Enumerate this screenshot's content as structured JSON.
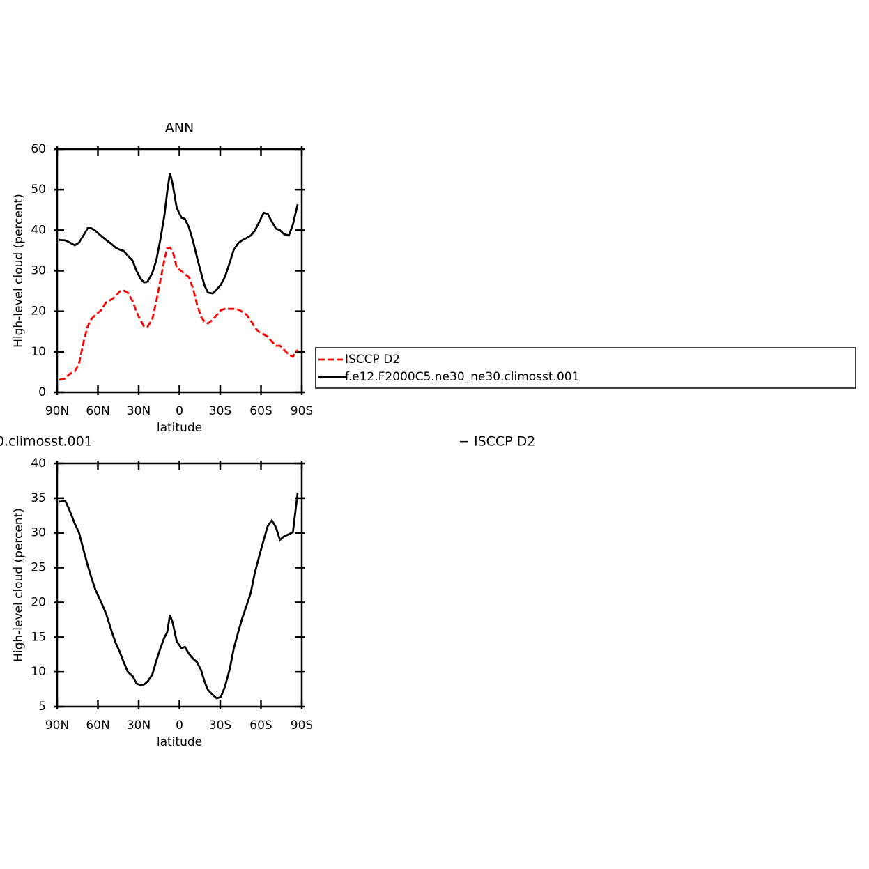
{
  "chart_data": [
    {
      "type": "line",
      "title": "ANN",
      "xlabel": "latitude",
      "ylabel": "High-level cloud (percent)",
      "x": [
        88.5,
        84,
        81,
        77,
        74,
        70.5,
        67.5,
        65,
        62,
        58,
        54,
        50,
        47,
        44,
        41,
        38,
        34.5,
        31.5,
        28.5,
        26,
        23.5,
        20,
        17,
        14,
        11,
        9,
        7,
        5,
        2,
        -1.5,
        -4,
        -7,
        -10,
        -13,
        -16,
        -18.5,
        -21,
        -24.5,
        -27.5,
        -30.5,
        -33.5,
        -37,
        -40,
        -43.5,
        -46.5,
        -49.5,
        -52.5,
        -55.5,
        -58.5,
        -62,
        -65,
        -68,
        -71,
        -74,
        -77,
        -80.5,
        -83.5,
        -87
      ],
      "series": [
        {
          "name": "ISCCP D2",
          "color": "#ff0000",
          "linestyle": "dashed",
          "values": [
            3.1,
            3.4,
            4.5,
            5.2,
            7.0,
            12.5,
            16.3,
            18.0,
            19.1,
            20.1,
            22.2,
            22.9,
            23.7,
            24.9,
            25.1,
            24.6,
            22.5,
            19.8,
            17.7,
            16.2,
            16.2,
            18.0,
            22.5,
            27.7,
            32.8,
            35.6,
            35.7,
            34.9,
            30.8,
            29.9,
            29.2,
            28.4,
            25.6,
            21.6,
            18.6,
            17.4,
            17.0,
            17.9,
            19.1,
            20.3,
            20.6,
            20.6,
            20.6,
            20.4,
            19.8,
            19.1,
            17.7,
            16.0,
            14.9,
            14.3,
            13.7,
            12.5,
            11.5,
            11.5,
            10.5,
            9.3,
            8.8,
            10.5
          ]
        },
        {
          "name": "f.e12.F2000C5.ne30_ne30.climosst.001",
          "color": "#000000",
          "linestyle": "solid",
          "values": [
            37.6,
            37.5,
            37.0,
            36.3,
            36.9,
            38.8,
            40.5,
            40.5,
            39.9,
            38.7,
            37.6,
            36.6,
            35.7,
            35.2,
            34.9,
            33.7,
            32.5,
            29.9,
            28.0,
            27.1,
            27.3,
            29.4,
            32.6,
            37.8,
            43.8,
            49.5,
            54.1,
            51.4,
            45.5,
            43.1,
            42.8,
            40.7,
            37.3,
            33.2,
            29.4,
            26.3,
            24.6,
            24.4,
            25.4,
            26.6,
            28.5,
            32.0,
            35.2,
            36.9,
            37.6,
            38.1,
            38.7,
            39.9,
            41.9,
            44.3,
            44.0,
            42.1,
            40.4,
            40.0,
            39.0,
            38.7,
            41.4,
            46.4
          ]
        }
      ],
      "xlim": [
        90,
        -90
      ],
      "xticks": [
        {
          "value": 90,
          "label": "90N"
        },
        {
          "value": 60,
          "label": "60N"
        },
        {
          "value": 30,
          "label": "30N"
        },
        0,
        {
          "value": -30,
          "label": "30S"
        },
        {
          "value": -60,
          "label": "60S"
        },
        {
          "value": -90,
          "label": "90S"
        }
      ],
      "ylim": [
        0,
        60
      ],
      "yticks": [
        0,
        10,
        20,
        30,
        40,
        50,
        60
      ],
      "legend": "right"
    },
    {
      "type": "line",
      "title_left": "0.climosst.001",
      "title_right": "− ISCCP D2",
      "xlabel": "latitude",
      "ylabel": "High-level cloud (percent)",
      "x": [
        88.5,
        84,
        81,
        77,
        74,
        70.5,
        67.5,
        65,
        62,
        58,
        54,
        50,
        47,
        44,
        41,
        38,
        34.5,
        31.5,
        28.5,
        26,
        23.5,
        20,
        17,
        14,
        11,
        9,
        7,
        5,
        2,
        -1.5,
        -4,
        -7,
        -10,
        -13,
        -16,
        -18.5,
        -21,
        -24.5,
        -27.5,
        -30.5,
        -33.5,
        -37,
        -40,
        -43.5,
        -46.5,
        -49.5,
        -52.5,
        -55.5,
        -58.5,
        -62,
        -65,
        -68,
        -71,
        -74,
        -77,
        -80.5,
        -83.5,
        -87
      ],
      "series": [
        {
          "color": "#000000",
          "linestyle": "solid",
          "values": [
            34.5,
            34.6,
            33.3,
            31.3,
            30.1,
            27.5,
            25.3,
            23.7,
            21.9,
            20.2,
            18.4,
            15.9,
            14.2,
            12.9,
            11.4,
            10.0,
            9.4,
            8.3,
            8.1,
            8.2,
            8.6,
            9.6,
            11.6,
            13.4,
            15.0,
            15.7,
            18.2,
            17.1,
            14.4,
            13.4,
            13.6,
            12.6,
            11.9,
            11.4,
            10.2,
            8.6,
            7.4,
            6.7,
            6.2,
            6.4,
            7.9,
            10.4,
            13.4,
            15.9,
            17.9,
            19.6,
            21.4,
            24.3,
            26.5,
            29.0,
            31.0,
            31.8,
            30.8,
            29.0,
            29.5,
            29.8,
            30.1,
            35.8
          ]
        }
      ],
      "xlim": [
        90,
        -90
      ],
      "xticks": [
        {
          "value": 90,
          "label": "90N"
        },
        {
          "value": 60,
          "label": "60N"
        },
        {
          "value": 30,
          "label": "30N"
        },
        0,
        {
          "value": -30,
          "label": "30S"
        },
        {
          "value": -60,
          "label": "60S"
        },
        {
          "value": -90,
          "label": "90S"
        }
      ],
      "ylim": [
        5,
        40
      ],
      "yticks": [
        5,
        10,
        15,
        20,
        25,
        30,
        35,
        40
      ]
    }
  ]
}
